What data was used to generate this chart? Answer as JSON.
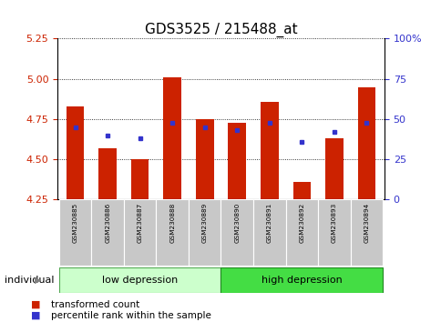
{
  "title": "GDS3525 / 215488_at",
  "samples": [
    "GSM230885",
    "GSM230886",
    "GSM230887",
    "GSM230888",
    "GSM230889",
    "GSM230890",
    "GSM230891",
    "GSM230892",
    "GSM230893",
    "GSM230894"
  ],
  "bar_values": [
    4.83,
    4.57,
    4.5,
    5.01,
    4.75,
    4.73,
    4.86,
    4.36,
    4.63,
    4.95
  ],
  "dot_values": [
    4.7,
    4.65,
    4.63,
    4.73,
    4.7,
    4.68,
    4.73,
    4.61,
    4.67,
    4.73
  ],
  "bar_base": 4.25,
  "ylim": [
    4.25,
    5.25
  ],
  "yticks": [
    4.25,
    4.5,
    4.75,
    5.0,
    5.25
  ],
  "y2lim": [
    0,
    100
  ],
  "y2ticks": [
    0,
    25,
    50,
    75,
    100
  ],
  "y2ticklabels": [
    "0",
    "25",
    "50",
    "75",
    "100%"
  ],
  "bar_color": "#cc2200",
  "dot_color": "#3333cc",
  "group1_label": "low depression",
  "group2_label": "high depression",
  "group1_count": 5,
  "group2_count": 5,
  "group1_color": "#ccffcc",
  "group2_color": "#44dd44",
  "individual_label": "individual",
  "legend_bar_label": "transformed count",
  "legend_dot_label": "percentile rank within the sample",
  "left_color": "#cc2200",
  "right_color": "#3333cc",
  "tick_bg_color": "#c8c8c8",
  "title_fontsize": 11,
  "axis_fontsize": 8,
  "tick_fontsize": 6
}
